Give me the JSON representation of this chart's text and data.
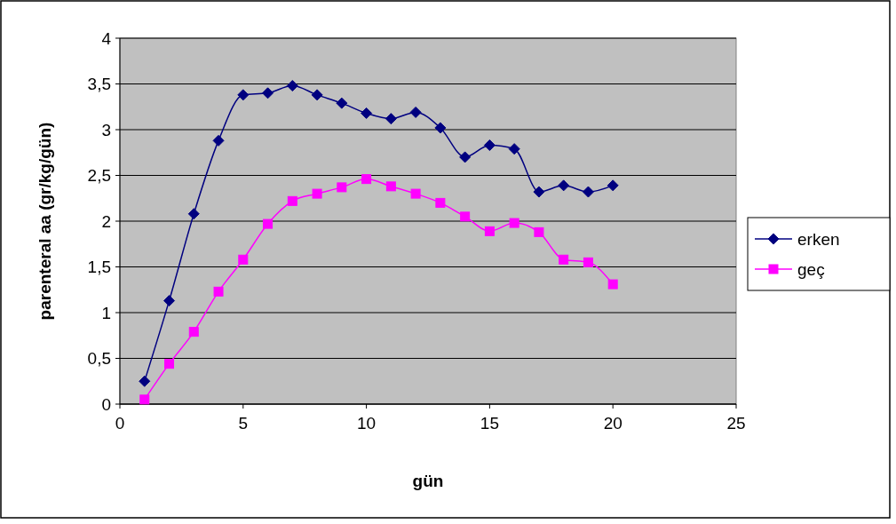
{
  "chart_data": {
    "type": "line",
    "xlabel": "gün",
    "ylabel": "parenteral aa (gr/kg/gün)",
    "x": [
      1,
      2,
      3,
      4,
      5,
      6,
      7,
      8,
      9,
      10,
      11,
      12,
      13,
      14,
      15,
      16,
      17,
      18,
      19,
      20
    ],
    "series": [
      {
        "name": "erken",
        "color": "#000080",
        "marker": "diamond",
        "values": [
          0.25,
          1.13,
          2.08,
          2.88,
          3.38,
          3.4,
          3.48,
          3.38,
          3.29,
          3.18,
          3.12,
          3.19,
          3.02,
          2.7,
          2.83,
          2.79,
          2.32,
          2.39,
          2.32,
          2.39
        ]
      },
      {
        "name": "geç",
        "color": "#ff00ff",
        "marker": "square",
        "values": [
          0.05,
          0.44,
          0.79,
          1.23,
          1.58,
          1.97,
          2.22,
          2.3,
          2.37,
          2.46,
          2.38,
          2.3,
          2.2,
          2.05,
          1.89,
          1.98,
          1.88,
          1.58,
          1.55,
          1.31
        ]
      }
    ],
    "xlim": [
      0,
      25
    ],
    "xticks": [
      0,
      5,
      10,
      15,
      20,
      25
    ],
    "ylim": [
      0,
      4
    ],
    "yticks": [
      0,
      {
        "value": 0.5,
        "label": "0,5"
      },
      1,
      {
        "value": 1.5,
        "label": "1,5"
      },
      2,
      {
        "value": 2.5,
        "label": "2,5"
      },
      3,
      {
        "value": 3.5,
        "label": "3,5"
      },
      4
    ],
    "grid": "y",
    "legend": "right",
    "line_style": "solid"
  }
}
